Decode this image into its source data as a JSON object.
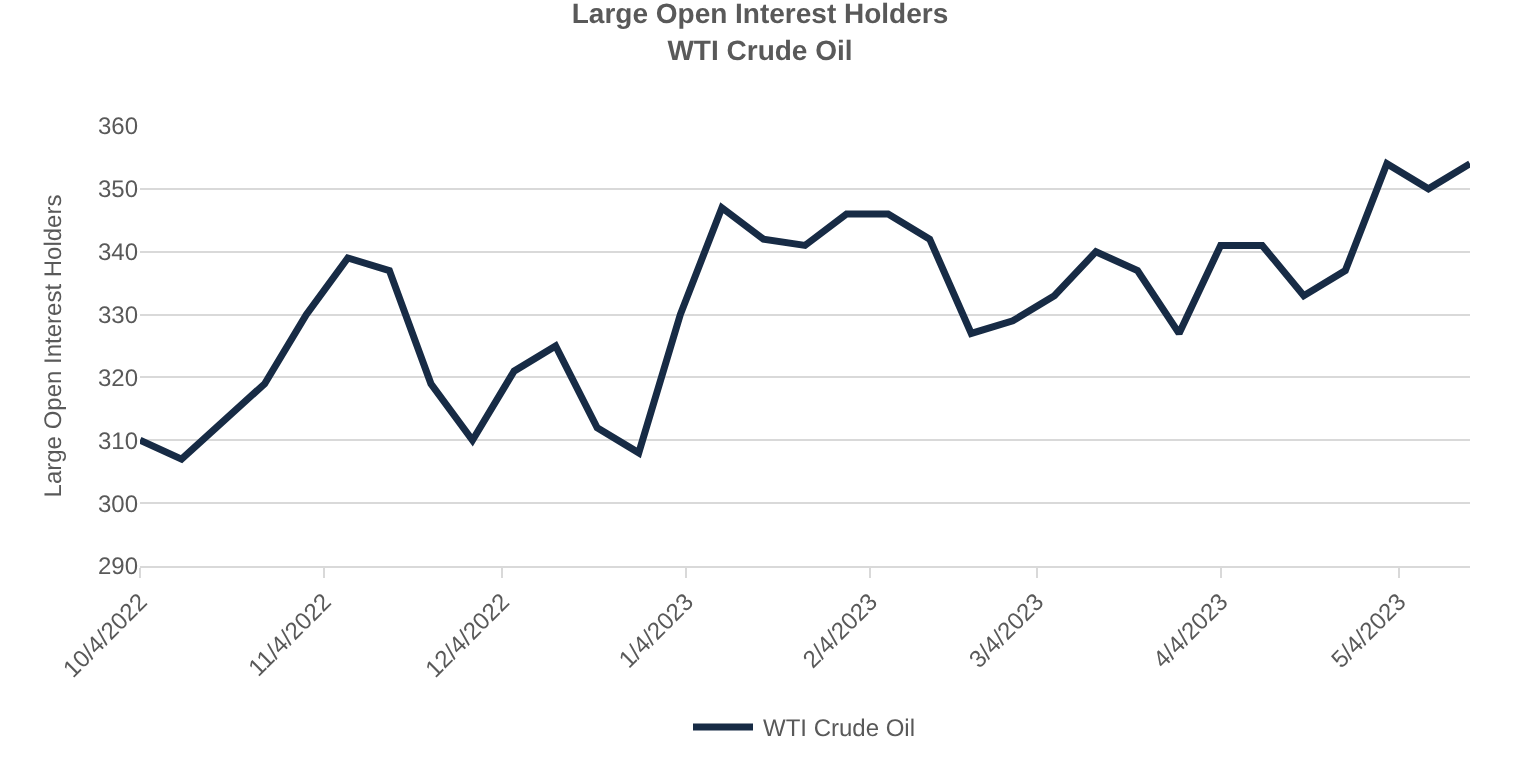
{
  "chart_data": {
    "type": "line",
    "title": "Large Open Interest Holders\nWTI Crude Oil",
    "ylabel": "Large Open Interest Holders",
    "x": [
      "2022-10-04",
      "2022-10-11",
      "2022-10-18",
      "2022-10-25",
      "2022-11-01",
      "2022-11-08",
      "2022-11-15",
      "2022-11-22",
      "2022-11-29",
      "2022-12-06",
      "2022-12-13",
      "2022-12-20",
      "2022-12-27",
      "2023-01-03",
      "2023-01-10",
      "2023-01-17",
      "2023-01-24",
      "2023-01-31",
      "2023-02-07",
      "2023-02-14",
      "2023-02-21",
      "2023-02-28",
      "2023-03-07",
      "2023-03-14",
      "2023-03-21",
      "2023-03-28",
      "2023-04-04",
      "2023-04-11",
      "2023-04-18",
      "2023-04-25",
      "2023-05-02",
      "2023-05-09",
      "2023-05-16"
    ],
    "series": [
      {
        "name": "WTI Crude Oil",
        "color": "#172b45",
        "values": [
          310,
          307,
          313,
          319,
          330,
          339,
          337,
          319,
          310,
          321,
          325,
          312,
          308,
          330,
          347,
          342,
          341,
          346,
          346,
          342,
          327,
          329,
          333,
          340,
          337,
          327,
          341,
          341,
          333,
          337,
          354,
          350,
          354
        ]
      }
    ],
    "xlim": [
      "2022-10-04",
      "2023-05-16"
    ],
    "xticks": [
      {
        "value": "2022-10-04",
        "label": "10/4/2022"
      },
      {
        "value": "2022-11-04",
        "label": "11/4/2022"
      },
      {
        "value": "2022-12-04",
        "label": "12/4/2022"
      },
      {
        "value": "2023-01-04",
        "label": "1/4/2023"
      },
      {
        "value": "2023-02-04",
        "label": "2/4/2023"
      },
      {
        "value": "2023-03-04",
        "label": "3/4/2023"
      },
      {
        "value": "2023-04-04",
        "label": "4/4/2023"
      },
      {
        "value": "2023-05-04",
        "label": "5/4/2023"
      }
    ],
    "ylim": [
      290,
      360
    ],
    "yticks": [
      290,
      300,
      310,
      320,
      330,
      340,
      350,
      360
    ],
    "grid": "y",
    "legend": "bottom",
    "marker": "none",
    "line_style": "solid"
  }
}
